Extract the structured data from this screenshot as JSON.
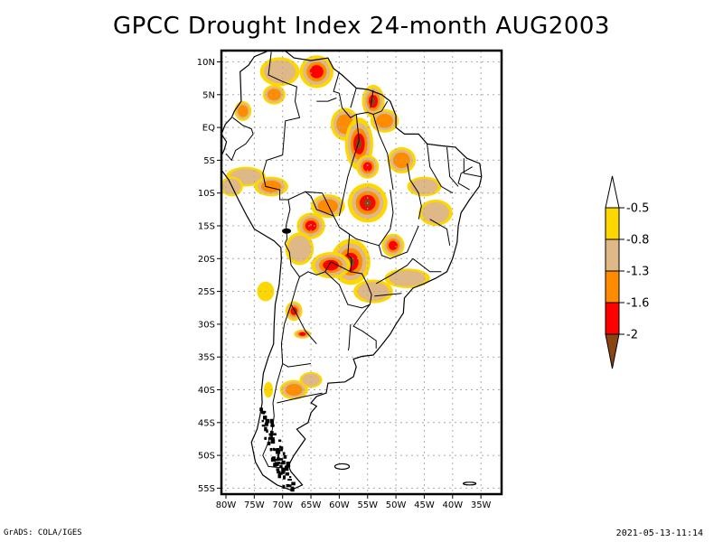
{
  "title": "GPCC Drought Index 24-month AUG2003",
  "footer": {
    "left": "GrADS: COLA/IGES",
    "right": "2021-05-13-11:14"
  },
  "chart_data": {
    "type": "heatmap",
    "title": "GPCC Drought Index 24-month AUG2003",
    "xlabel": "",
    "ylabel": "",
    "lon_range": [
      -80.8,
      -31.3
    ],
    "lat_range": [
      -56,
      12
    ],
    "grid": true,
    "x_ticks": [
      {
        "value": -80,
        "label": "80W"
      },
      {
        "value": -75,
        "label": "75W"
      },
      {
        "value": -70,
        "label": "70W"
      },
      {
        "value": -65,
        "label": "65W"
      },
      {
        "value": -60,
        "label": "60W"
      },
      {
        "value": -55,
        "label": "55W"
      },
      {
        "value": -50,
        "label": "50W"
      },
      {
        "value": -45,
        "label": "45W"
      },
      {
        "value": -40,
        "label": "40W"
      },
      {
        "value": -35,
        "label": "35W"
      }
    ],
    "y_ticks": [
      {
        "value": 10,
        "label": "10N"
      },
      {
        "value": 5,
        "label": "5N"
      },
      {
        "value": 0,
        "label": "EQ"
      },
      {
        "value": -5,
        "label": "5S"
      },
      {
        "value": -10,
        "label": "10S"
      },
      {
        "value": -15,
        "label": "15S"
      },
      {
        "value": -20,
        "label": "20S"
      },
      {
        "value": -25,
        "label": "25S"
      },
      {
        "value": -30,
        "label": "30S"
      },
      {
        "value": -35,
        "label": "35S"
      },
      {
        "value": -40,
        "label": "40S"
      },
      {
        "value": -45,
        "label": "45S"
      },
      {
        "value": -50,
        "label": "50S"
      },
      {
        "value": -55,
        "label": "55S"
      }
    ],
    "colorbar": {
      "placement": "right",
      "levels": [
        "-0.5",
        "-0.8",
        "-1.3",
        "-1.6",
        "-2"
      ],
      "colors": [
        "#ffffff",
        "#ffd700",
        "#deb887",
        "#ff8c00",
        "#ff0000",
        "#8b4513"
      ]
    },
    "drought_areas": [
      {
        "lon": -70.5,
        "lat": 8.5,
        "rx": 3.5,
        "ry": 2.2,
        "min_class": 2
      },
      {
        "lon": -64.0,
        "lat": 8.5,
        "rx": 3.0,
        "ry": 2.5,
        "min_class": 4
      },
      {
        "lon": -71.5,
        "lat": 5.0,
        "rx": 2.0,
        "ry": 1.5,
        "min_class": 3
      },
      {
        "lon": -77.0,
        "lat": 2.5,
        "rx": 1.5,
        "ry": 1.5,
        "min_class": 3
      },
      {
        "lon": -59.0,
        "lat": 0.5,
        "rx": 2.5,
        "ry": 2.5,
        "min_class": 3
      },
      {
        "lon": -54.0,
        "lat": 4.0,
        "rx": 2.0,
        "ry": 2.5,
        "min_class": 5
      },
      {
        "lon": -52.0,
        "lat": 1.0,
        "rx": 2.5,
        "ry": 1.8,
        "min_class": 3
      },
      {
        "lon": -56.5,
        "lat": -2.5,
        "rx": 2.5,
        "ry": 4.0,
        "min_class": 5
      },
      {
        "lon": -55.0,
        "lat": -6.0,
        "rx": 2.0,
        "ry": 1.8,
        "min_class": 4
      },
      {
        "lon": -49.0,
        "lat": -5.0,
        "rx": 2.5,
        "ry": 2.0,
        "min_class": 3
      },
      {
        "lon": -76.5,
        "lat": -7.5,
        "rx": 3.5,
        "ry": 1.5,
        "min_class": 2
      },
      {
        "lon": -79.0,
        "lat": -9.0,
        "rx": 2.0,
        "ry": 1.5,
        "min_class": 2
      },
      {
        "lon": -72.0,
        "lat": -9.0,
        "rx": 3.0,
        "ry": 1.5,
        "min_class": 3
      },
      {
        "lon": -55.0,
        "lat": -11.5,
        "rx": 3.5,
        "ry": 3.0,
        "min_class": 5
      },
      {
        "lon": -62.0,
        "lat": -12.0,
        "rx": 3.0,
        "ry": 1.8,
        "min_class": 3
      },
      {
        "lon": -65.0,
        "lat": -15.0,
        "rx": 2.5,
        "ry": 2.0,
        "min_class": 4
      },
      {
        "lon": -43.0,
        "lat": -13.0,
        "rx": 3.0,
        "ry": 2.0,
        "min_class": 2
      },
      {
        "lon": -45.0,
        "lat": -9.0,
        "rx": 3.0,
        "ry": 1.5,
        "min_class": 2
      },
      {
        "lon": -50.5,
        "lat": -18.0,
        "rx": 2.0,
        "ry": 1.8,
        "min_class": 4
      },
      {
        "lon": -58.0,
        "lat": -20.5,
        "rx": 3.5,
        "ry": 3.5,
        "min_class": 5
      },
      {
        "lon": -61.5,
        "lat": -21.0,
        "rx": 3.5,
        "ry": 2.0,
        "min_class": 4
      },
      {
        "lon": -67.0,
        "lat": -18.5,
        "rx": 2.5,
        "ry": 2.5,
        "min_class": 2
      },
      {
        "lon": -48.0,
        "lat": -23.0,
        "rx": 4.0,
        "ry": 1.5,
        "min_class": 2
      },
      {
        "lon": -54.0,
        "lat": -25.0,
        "rx": 3.5,
        "ry": 1.8,
        "min_class": 2
      },
      {
        "lon": -68.0,
        "lat": -28.0,
        "rx": 1.5,
        "ry": 1.5,
        "min_class": 5
      },
      {
        "lon": -73.0,
        "lat": -25.0,
        "rx": 1.5,
        "ry": 1.5,
        "min_class": 1
      },
      {
        "lon": -66.5,
        "lat": -31.5,
        "rx": 1.5,
        "ry": 0.7,
        "min_class": 4
      },
      {
        "lon": -68.0,
        "lat": -40.0,
        "rx": 2.5,
        "ry": 1.5,
        "min_class": 3
      },
      {
        "lon": -65.0,
        "lat": -38.5,
        "rx": 2.0,
        "ry": 1.2,
        "min_class": 2
      },
      {
        "lon": -72.5,
        "lat": -40.0,
        "rx": 0.8,
        "ry": 1.2,
        "min_class": 1
      }
    ]
  }
}
